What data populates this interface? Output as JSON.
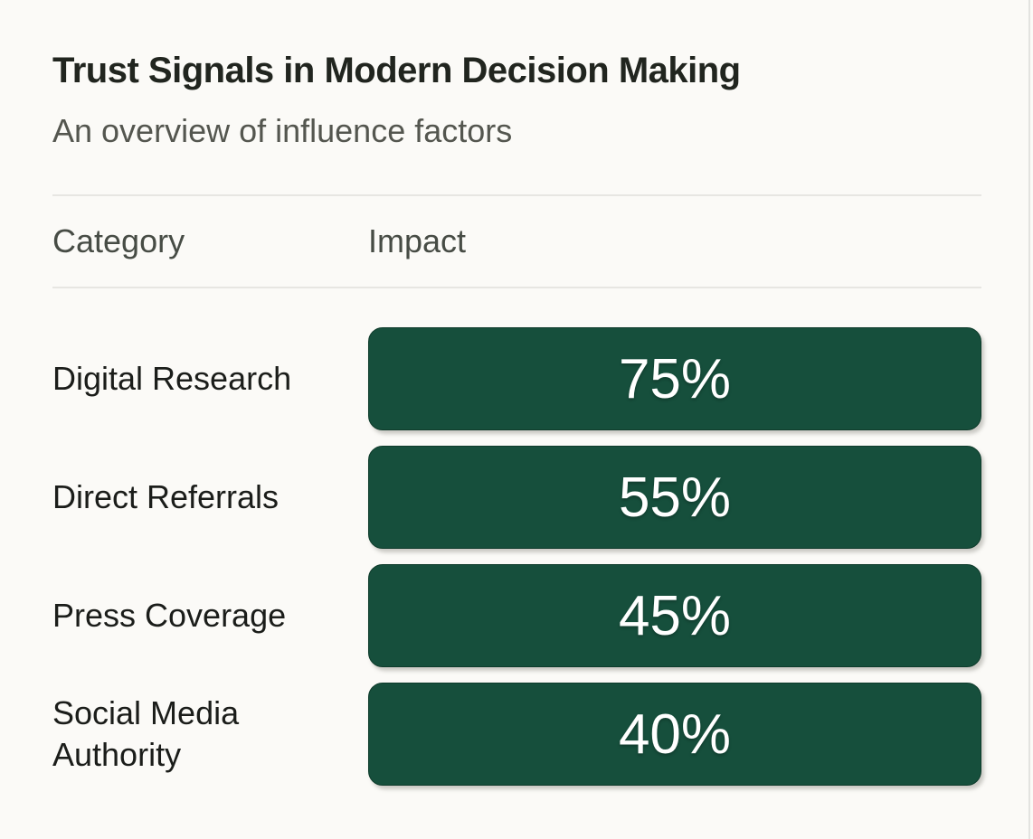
{
  "page": {
    "background_color": "#fbfaf7",
    "bar_color": "#164f3c",
    "bar_text_color": "#ffffff",
    "divider_color": "#e7e6e2"
  },
  "header": {
    "title": "Trust Signals in Modern Decision Making",
    "subtitle": "An overview of influence factors"
  },
  "table": {
    "columns": {
      "category_label": "Category",
      "impact_label": "Impact"
    },
    "rows": [
      {
        "category": "Digital Research",
        "impact": "75%"
      },
      {
        "category": "Direct Referrals",
        "impact": "55%"
      },
      {
        "category": "Press Coverage",
        "impact": "45%"
      },
      {
        "category": "Social Media Authority",
        "impact": "40%"
      }
    ]
  },
  "chart_data": {
    "type": "bar",
    "title": "Trust Signals in Modern Decision Making",
    "subtitle": "An overview of influence factors",
    "categories": [
      "Digital Research",
      "Direct Referrals",
      "Press Coverage",
      "Social Media Authority"
    ],
    "values": [
      75,
      55,
      45,
      40
    ],
    "value_unit": "%",
    "xlabel": "Category",
    "ylabel": "Impact",
    "ylim": [
      0,
      100
    ],
    "grid": false,
    "legend": false,
    "layout_note": "rendered as a table; every bar drawn full column width with centered percentage label",
    "bar_color": "#164f3c",
    "label_color": "#ffffff"
  }
}
